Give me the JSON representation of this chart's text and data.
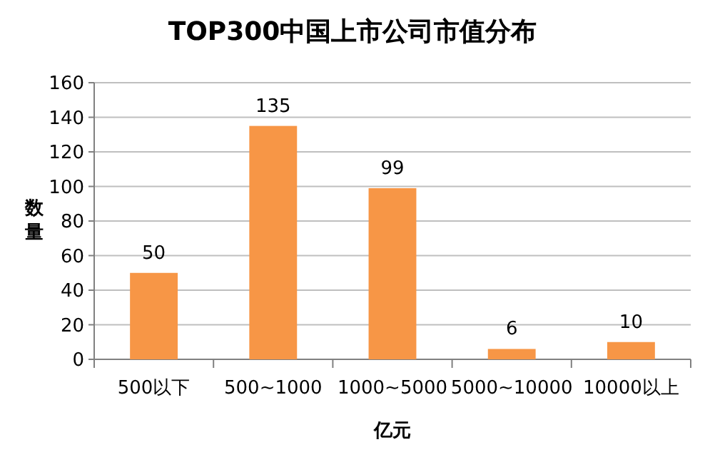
{
  "chart_data": {
    "type": "bar",
    "title": "TOP300中国上市公司市值分布",
    "xlabel": "亿元",
    "ylabel": "数量",
    "categories": [
      "500以下",
      "500~1000",
      "1000~5000",
      "5000~10000",
      "10000以上"
    ],
    "values": [
      50,
      135,
      99,
      6,
      10
    ],
    "color": "#f79646",
    "ylim": [
      0,
      160
    ],
    "yticks": [
      0,
      20,
      40,
      60,
      80,
      100,
      120,
      140,
      160
    ],
    "grid": "y",
    "data_labels": true
  }
}
